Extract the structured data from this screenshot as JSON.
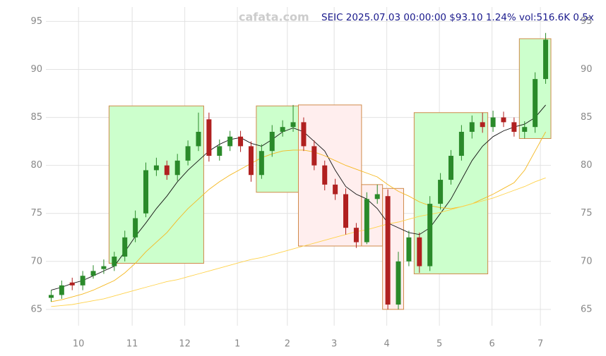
{
  "chart_data": {
    "type": "candlestick",
    "title": "SEIC 2025.07.03 00:00:00 $93.10 1.24% vol:516.6K 0.5x",
    "watermark": "cafata.com",
    "open": [
      66.2,
      66.5,
      67.8,
      67.5,
      68.5,
      69.2,
      69.5,
      70.5,
      72.5,
      75,
      79.5,
      80,
      79,
      80.5,
      82,
      84.8,
      81,
      82,
      83,
      82,
      79,
      81.5,
      83.5,
      84,
      84.5,
      82,
      80,
      78,
      77,
      73.5,
      72,
      76.5,
      76.8,
      65.5,
      70,
      72.5,
      69.5,
      76,
      78.5,
      81,
      83.5,
      84.5,
      84,
      85,
      84.5,
      83.5,
      84,
      89
    ],
    "high": [
      67,
      68,
      68.3,
      69,
      69.6,
      70.2,
      71,
      73.2,
      75.3,
      80.3,
      80.8,
      80.5,
      81.2,
      82.6,
      85.5,
      85.5,
      82.7,
      83.6,
      83.6,
      82.5,
      82.2,
      84.2,
      84.7,
      86.3,
      85,
      82.6,
      80.5,
      78.6,
      77.6,
      74,
      77.2,
      78,
      77.5,
      71,
      73.2,
      73,
      76.8,
      79.2,
      81.6,
      84.2,
      85.2,
      85.5,
      85.7,
      85.6,
      85,
      84.6,
      89.7,
      93.8
    ],
    "low": [
      65.8,
      66.1,
      67,
      67,
      68.2,
      68.7,
      69,
      70,
      72,
      74.6,
      78.9,
      78.5,
      78.4,
      80,
      81.5,
      80.4,
      80.5,
      81.5,
      81.4,
      78.3,
      78.6,
      80.9,
      83,
      83.5,
      81.5,
      79.5,
      77.4,
      76.4,
      72.8,
      71.4,
      71.8,
      76,
      65,
      65,
      69.5,
      68.8,
      69,
      75.4,
      78,
      80.5,
      82.8,
      83.4,
      83.5,
      84,
      83,
      82.8,
      83.4,
      88.5
    ],
    "close": [
      66.5,
      67.5,
      67.5,
      68.5,
      69,
      69.5,
      70.5,
      72.5,
      74.5,
      79.5,
      80,
      79,
      80.5,
      82,
      83.5,
      81,
      82,
      83,
      82,
      79,
      81.5,
      83.5,
      84,
      84.5,
      82,
      80,
      78,
      77,
      73.5,
      72,
      76.5,
      77,
      65.5,
      70,
      72.5,
      69.5,
      76,
      78.5,
      81,
      83.5,
      84.5,
      84,
      85,
      84.5,
      83.5,
      84,
      89,
      93.1
    ],
    "up_color": "#2a8a2a",
    "down_color": "#b02020",
    "lines": [
      {
        "color": "#111111",
        "values": [
          67,
          67.3,
          67.7,
          68,
          68.5,
          69,
          69.5,
          71,
          72.6,
          74,
          75.5,
          76.8,
          78.3,
          79.5,
          80.5,
          81.5,
          82.2,
          82.7,
          82.9,
          82.3,
          82,
          82.7,
          83.5,
          83.9,
          83.5,
          82.5,
          81.5,
          79.5,
          77.8,
          77,
          76.5,
          75.5,
          74,
          73.5,
          73,
          72.8,
          73.5,
          75,
          76.5,
          78.5,
          80.5,
          82,
          83,
          83.6,
          84,
          84.3,
          85,
          86.3
        ]
      },
      {
        "color": "#f5b820",
        "values": [
          65.8,
          66,
          66.3,
          66.6,
          67,
          67.5,
          68,
          68.8,
          69.8,
          71,
          72,
          73,
          74.3,
          75.5,
          76.5,
          77.5,
          78.3,
          79,
          79.6,
          80.2,
          80.8,
          81.2,
          81.5,
          81.6,
          81.6,
          81.4,
          81,
          80.5,
          80,
          79.6,
          79.2,
          78.8,
          78,
          77.3,
          76.8,
          76.2,
          75.8,
          75.6,
          75.5,
          75.7,
          76,
          76.5,
          77,
          77.6,
          78.2,
          79.5,
          81.5,
          83.5
        ]
      },
      {
        "color": "#ffd24a",
        "values": [
          65.3,
          65.4,
          65.5,
          65.7,
          65.9,
          66.1,
          66.4,
          66.7,
          67,
          67.3,
          67.6,
          67.9,
          68.1,
          68.4,
          68.7,
          69,
          69.3,
          69.6,
          69.9,
          70.2,
          70.4,
          70.7,
          71,
          71.3,
          71.6,
          71.9,
          72.2,
          72.5,
          72.8,
          73.1,
          73.3,
          73.6,
          73.9,
          74.1,
          74.4,
          74.7,
          74.9,
          75.1,
          75.4,
          75.7,
          76,
          76.3,
          76.6,
          77,
          77.4,
          77.8,
          78.3,
          78.7
        ]
      }
    ],
    "zones": [
      {
        "from": 6,
        "to": 14,
        "low": 69.8,
        "high": 86.2,
        "color": "#ccffcc"
      },
      {
        "from": 20,
        "to": 23,
        "low": 77.2,
        "high": 86.2,
        "color": "#ccffcc"
      },
      {
        "from": 24,
        "to": 29,
        "low": 71.6,
        "high": 86.3,
        "color": "#ffeeee"
      },
      {
        "from": 30,
        "to": 31,
        "low": 71.6,
        "high": 78,
        "color": "#ffeeee"
      },
      {
        "from": 32,
        "to": 33,
        "low": 65,
        "high": 77.6,
        "color": "#ffeeee"
      },
      {
        "from": 35,
        "to": 41,
        "low": 68.7,
        "high": 85.5,
        "color": "#ccffcc"
      },
      {
        "from": 45,
        "to": 47,
        "low": 82.8,
        "high": 93.2,
        "color": "#ccffcc"
      }
    ],
    "xlim": [
      -0.5,
      47.5
    ],
    "xticks": [
      {
        "value": 2.6,
        "label": "10"
      },
      {
        "value": 7.7,
        "label": "11"
      },
      {
        "value": 12.7,
        "label": "12"
      },
      {
        "value": 17.7,
        "label": "1"
      },
      {
        "value": 22.45,
        "label": "2"
      },
      {
        "value": 26.9,
        "label": "3"
      },
      {
        "value": 31.9,
        "label": "4"
      },
      {
        "value": 36.9,
        "label": "5"
      },
      {
        "value": 41.9,
        "label": "6"
      },
      {
        "value": 46.5,
        "label": "7"
      }
    ],
    "ylim": [
      63.3,
      96.5
    ],
    "yticks": [
      65,
      70,
      75,
      80,
      85,
      90,
      95
    ],
    "grid": true
  }
}
